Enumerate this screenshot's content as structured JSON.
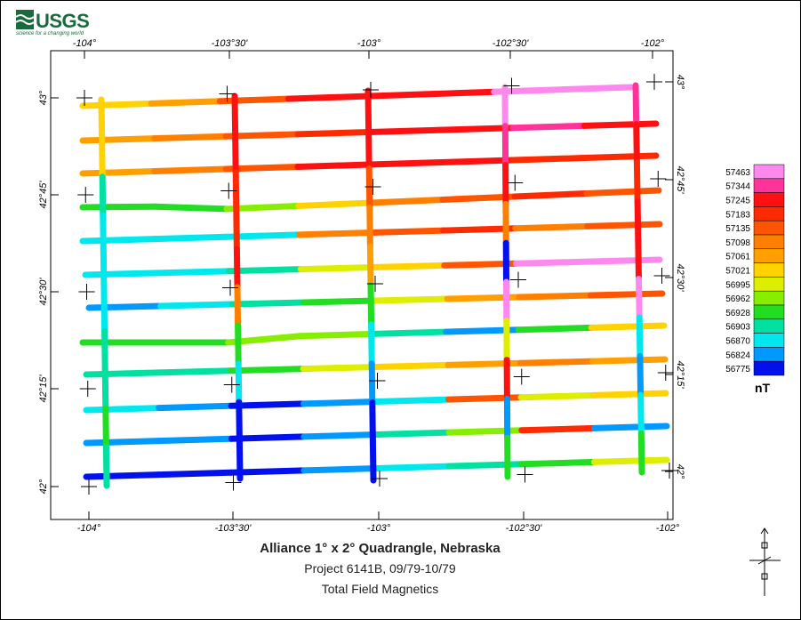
{
  "logo": {
    "name": "USGS",
    "tagline": "science for a changing world"
  },
  "map": {
    "top_lon_labels": [
      "-104°",
      "-103°30'",
      "-103°",
      "-102°30'",
      "-102°"
    ],
    "bottom_lon_labels": [
      "-104°",
      "-103°30'",
      "-103°",
      "-102°30'",
      "-102°"
    ],
    "left_lat_labels": [
      "43°",
      "42°45'",
      "42°30'",
      "42°15'",
      "42°"
    ],
    "right_lat_labels": [
      "43°",
      "42°45'",
      "42°30'",
      "42°15'",
      "42°"
    ]
  },
  "legend": {
    "unit": "nT",
    "values": [
      "57463",
      "57344",
      "57245",
      "57183",
      "57135",
      "57098",
      "57061",
      "57021",
      "56995",
      "56962",
      "56928",
      "56903",
      "56870",
      "56824",
      "56775"
    ],
    "colors": [
      "#ff88ee",
      "#ff3399",
      "#ff1111",
      "#ff2a00",
      "#ff5500",
      "#ff8000",
      "#ffa000",
      "#ffd200",
      "#ddee00",
      "#88ee00",
      "#22dd22",
      "#00e0a0",
      "#00e8ee",
      "#0099ff",
      "#0011ee"
    ]
  },
  "title": "Alliance 1° x 2° Quadrangle, Nebraska",
  "subtitle": "Project 6141B, 09/79-10/79",
  "subtitle2": "Total Field Magnetics"
}
